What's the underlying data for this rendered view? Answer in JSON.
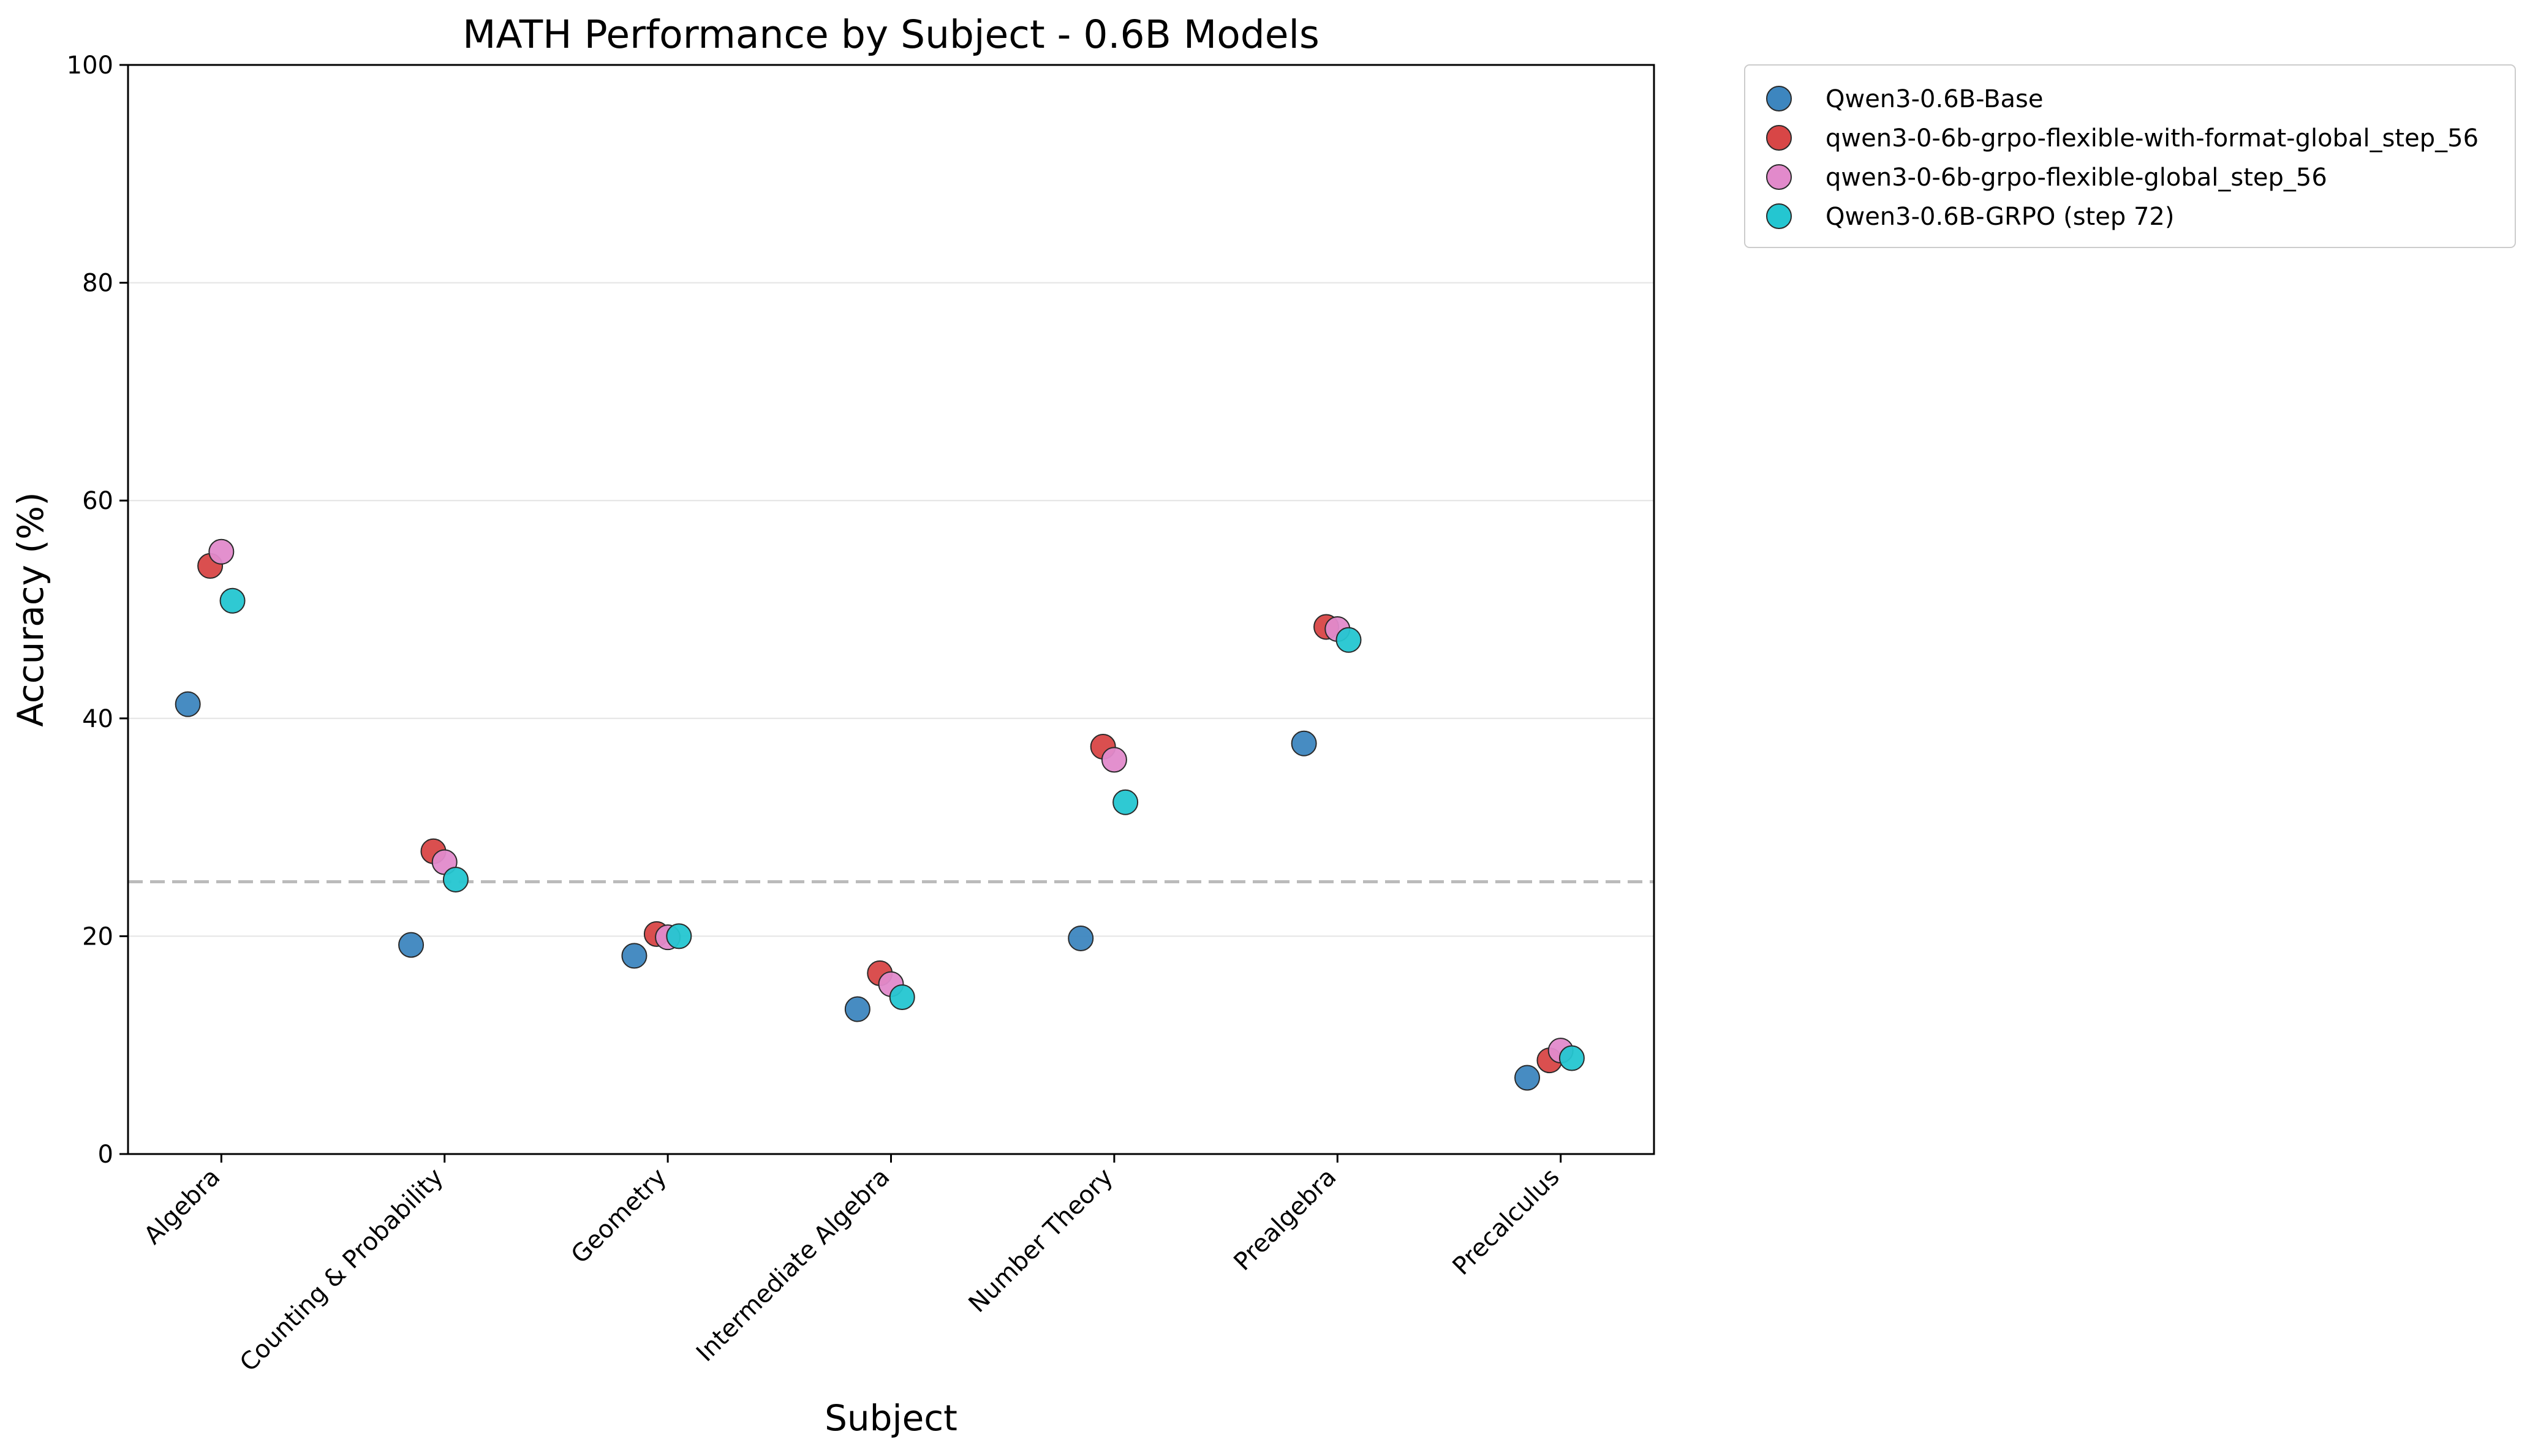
{
  "chart_data": {
    "type": "scatter",
    "title": "MATH Performance by Subject - 0.6B Models",
    "xlabel": "Subject",
    "ylabel": "Accuracy (%)",
    "categories": [
      "Algebra",
      "Counting & Probability",
      "Geometry",
      "Intermediate Algebra",
      "Number Theory",
      "Prealgebra",
      "Precalculus"
    ],
    "ylim": [
      0,
      100
    ],
    "yticks": [
      0,
      20,
      40,
      60,
      80,
      100
    ],
    "grid": "horizontal",
    "legend_position": "outside-top-right",
    "reference_line": {
      "y": 25,
      "style": "dashed",
      "color": "#bbbbbb"
    },
    "series": [
      {
        "name": "Qwen3-0.6B-Base",
        "color": "#3d86bf",
        "offset": -0.15,
        "values": [
          41.3,
          19.2,
          18.2,
          13.3,
          19.8,
          37.7,
          7.0
        ]
      },
      {
        "name": "qwen3-0-6b-grpo-flexible-with-format-global_step_56",
        "color": "#d84646",
        "offset": -0.05,
        "values": [
          54.0,
          27.8,
          20.2,
          16.6,
          37.4,
          48.4,
          8.6
        ]
      },
      {
        "name": "qwen3-0-6b-grpo-flexible-global_step_56",
        "color": "#e28acb",
        "offset": 0.0,
        "values": [
          55.3,
          26.8,
          19.9,
          15.6,
          36.2,
          48.2,
          9.5
        ]
      },
      {
        "name": "Qwen3-0.6B-GRPO (step 72)",
        "color": "#24c6d1",
        "offset": 0.05,
        "values": [
          50.8,
          25.2,
          20.0,
          14.4,
          32.3,
          47.2,
          8.8
        ]
      }
    ]
  }
}
